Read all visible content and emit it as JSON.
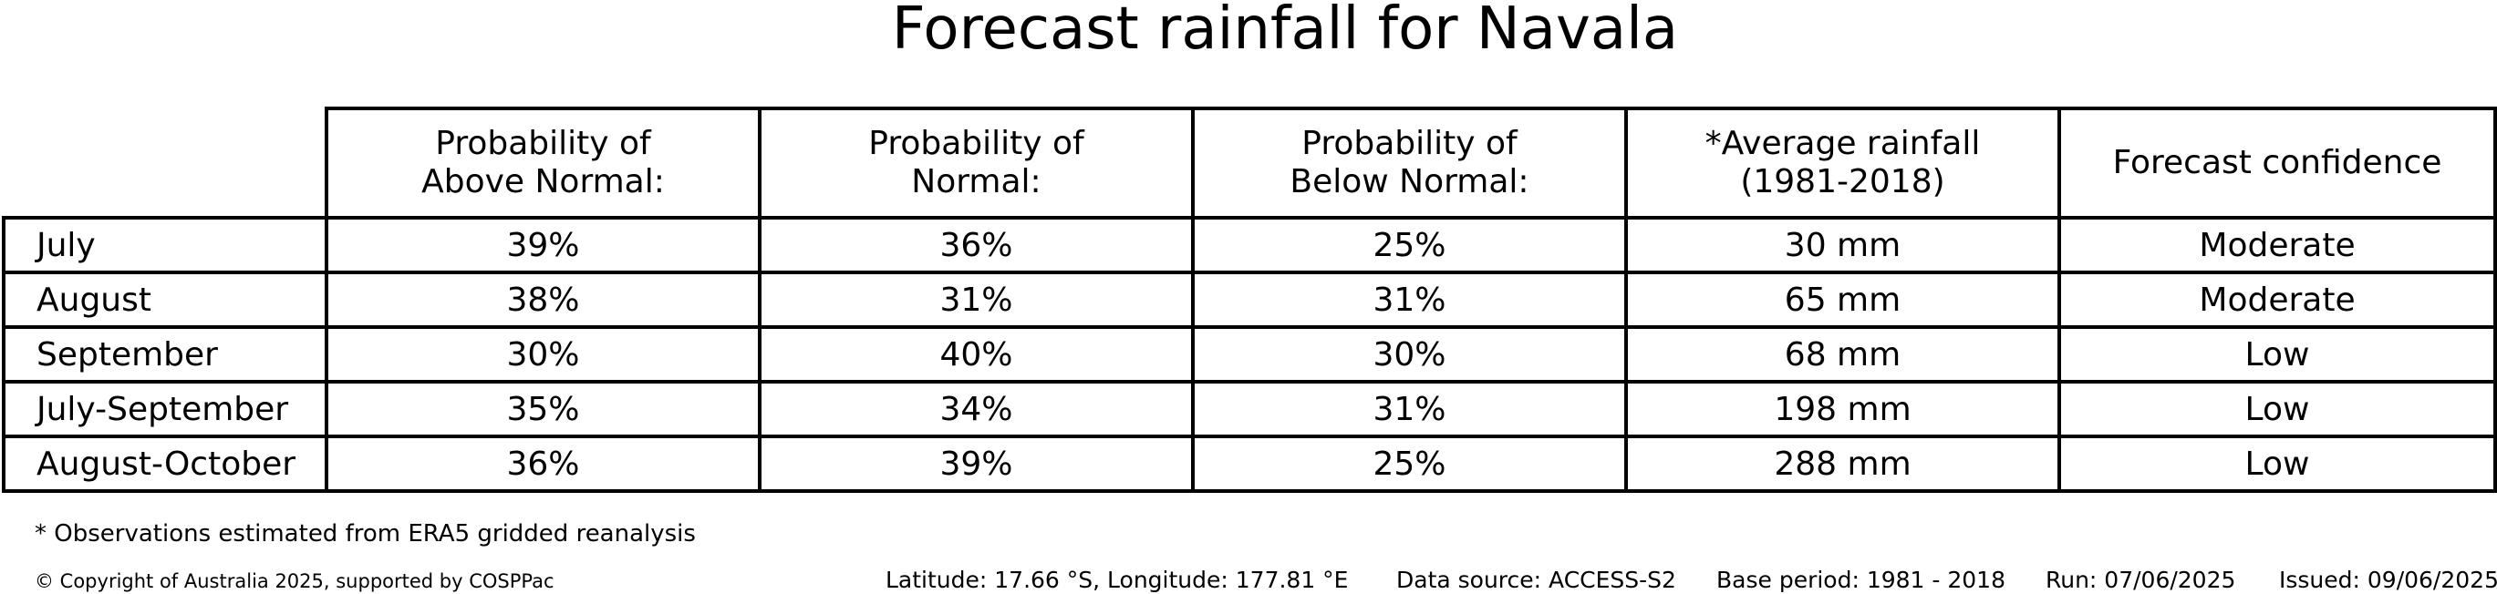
{
  "title": "Forecast rainfall for Navala",
  "table": {
    "headers": [
      {
        "line1": "Probability of",
        "line2": "Above Normal:"
      },
      {
        "line1": "Probability of",
        "line2": "Normal:"
      },
      {
        "line1": "Probability of",
        "line2": "Below Normal:"
      },
      {
        "line1": "*Average rainfall",
        "line2": "(1981-2018)"
      },
      {
        "line1": "Forecast confidence",
        "line2": ""
      }
    ],
    "rows": [
      {
        "period": "July",
        "above": "39%",
        "normal": "36%",
        "below": "25%",
        "avg": "30 mm",
        "confidence": "Moderate"
      },
      {
        "period": "August",
        "above": "38%",
        "normal": "31%",
        "below": "31%",
        "avg": "65 mm",
        "confidence": "Moderate"
      },
      {
        "period": "September",
        "above": "30%",
        "normal": "40%",
        "below": "30%",
        "avg": "68 mm",
        "confidence": "Low"
      },
      {
        "period": "July-September",
        "above": "35%",
        "normal": "34%",
        "below": "31%",
        "avg": "198 mm",
        "confidence": "Low"
      },
      {
        "period": "August-October",
        "above": "36%",
        "normal": "39%",
        "below": "25%",
        "avg": "288 mm",
        "confidence": "Low"
      }
    ]
  },
  "footnote": "* Observations estimated from ERA5 gridded reanalysis",
  "copyright": "© Copyright of Australia 2025, supported by COSPPac",
  "meta": {
    "location": "Latitude: 17.66 °S, Longitude: 177.81 °E",
    "data_source": "Data source: ACCESS-S2",
    "base_period": "Base period: 1981 - 2018",
    "run": "Run: 07/06/2025",
    "issued": "Issued: 09/06/2025"
  }
}
